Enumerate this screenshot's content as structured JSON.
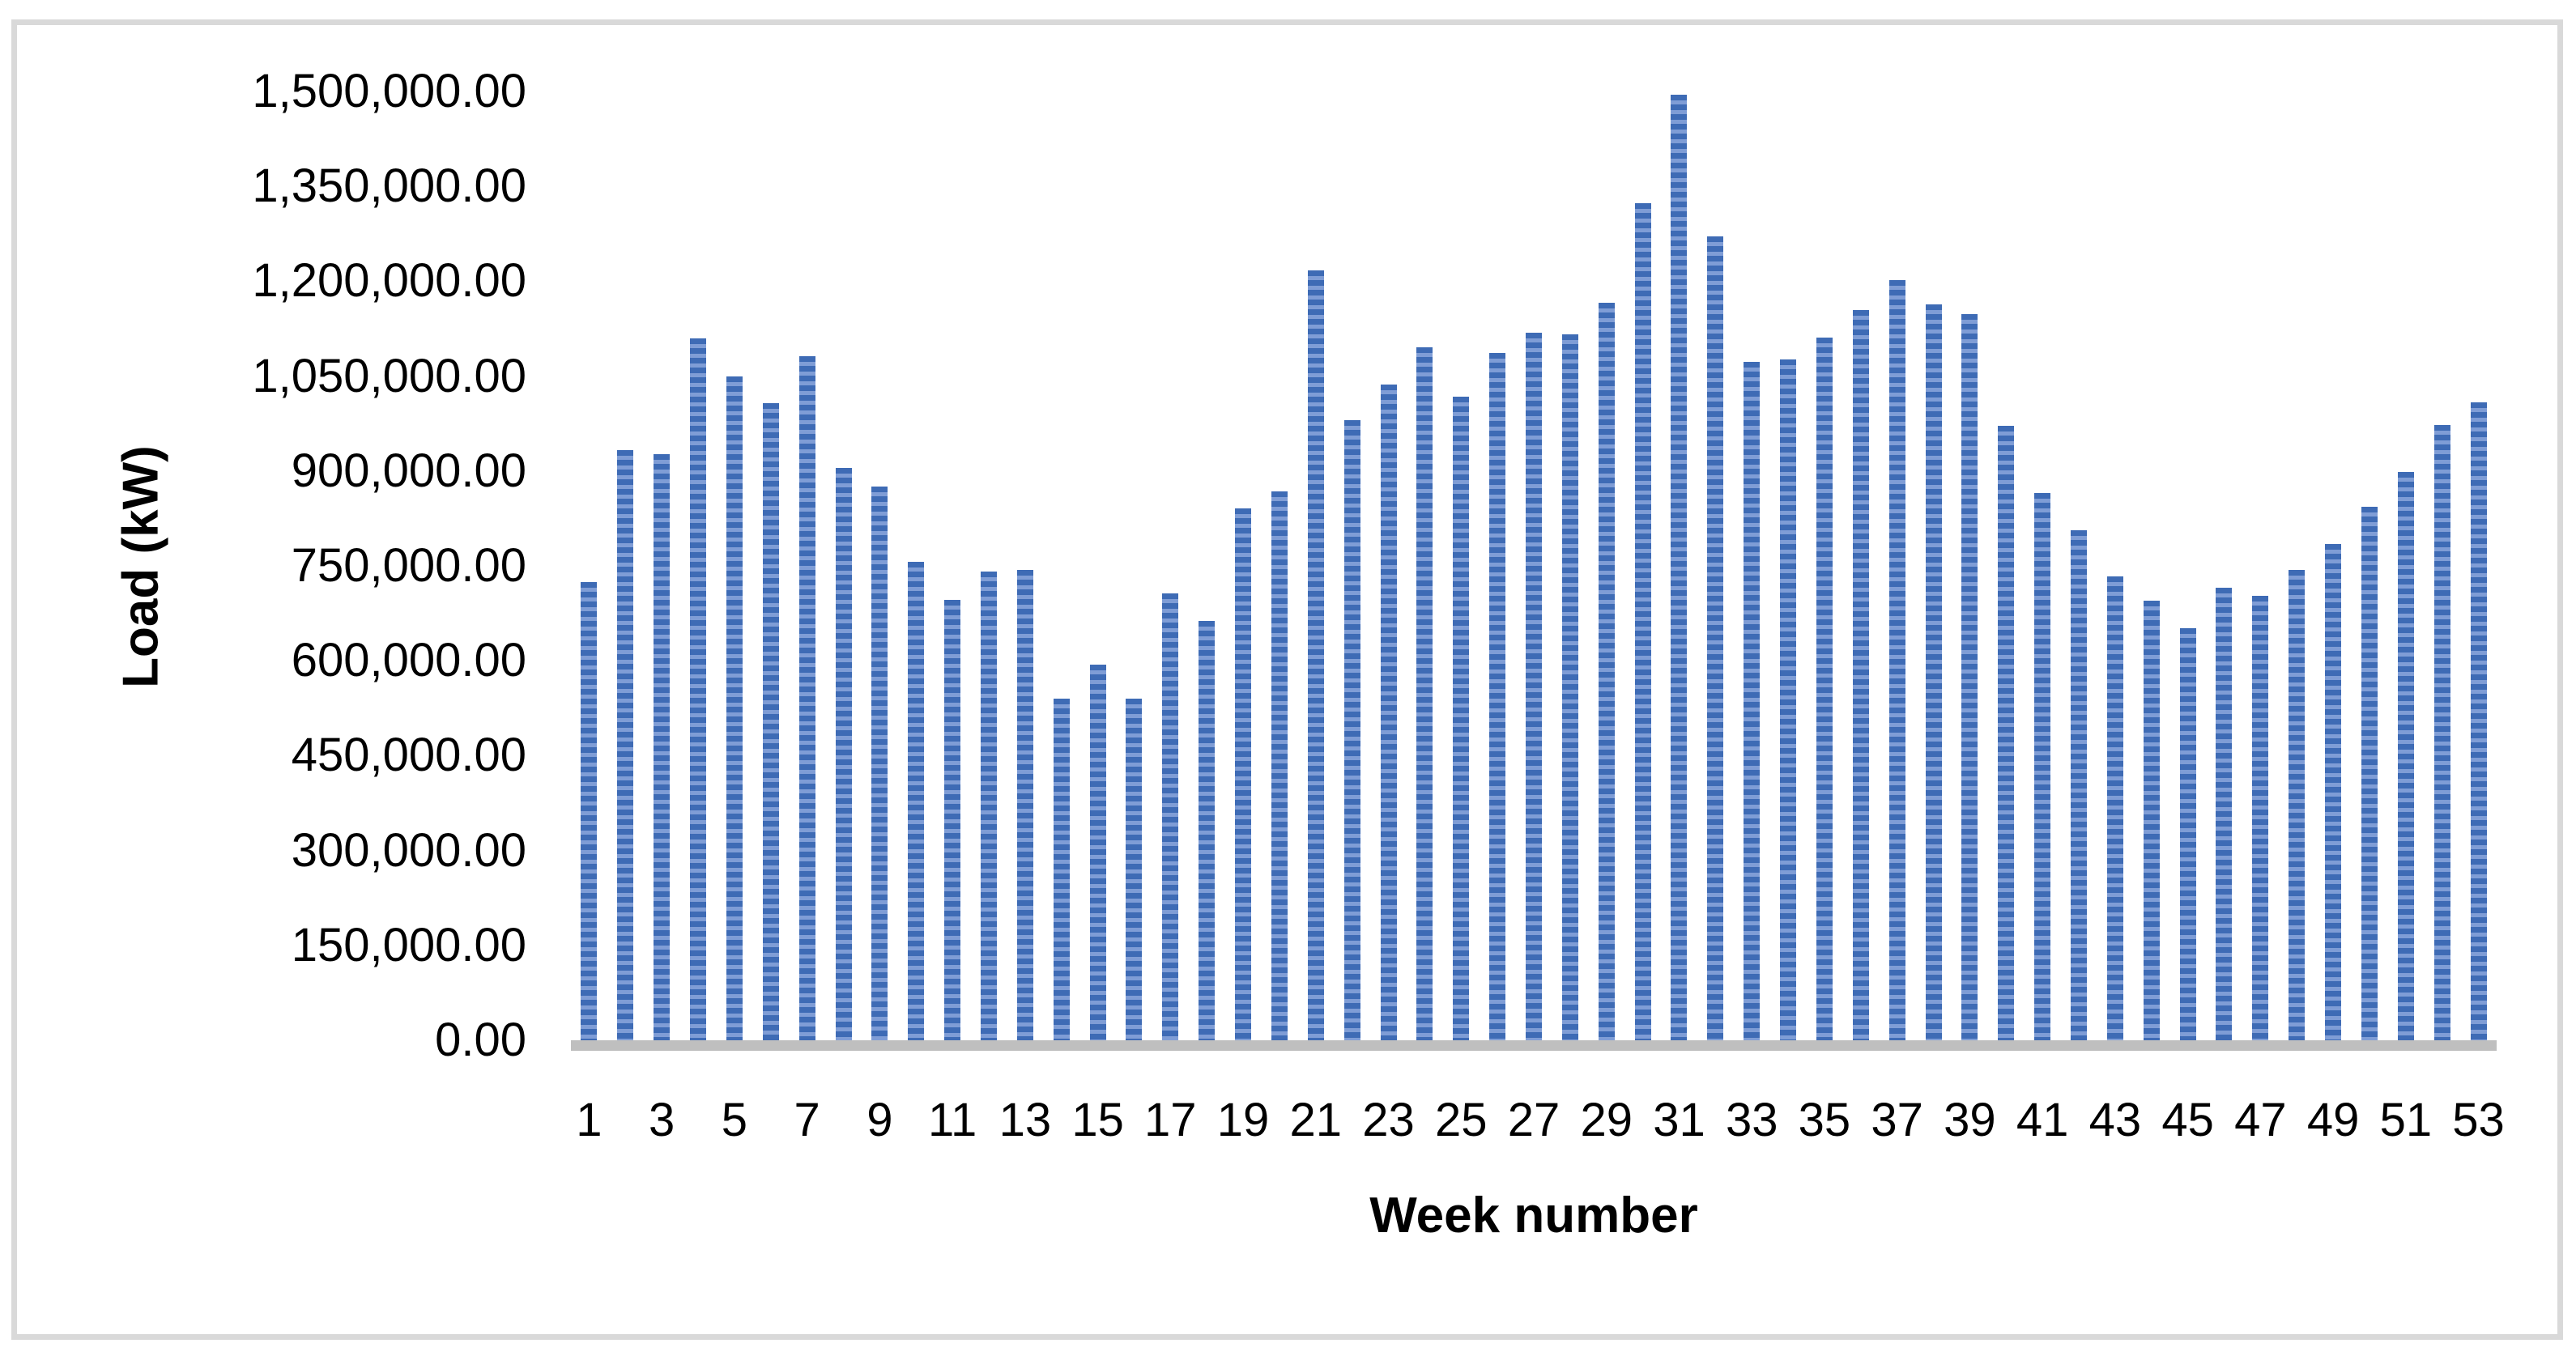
{
  "figure": {
    "background": "#FFFFFF",
    "frame_border_color": "#D9D9D9",
    "axis_line_color": "#BFBFBF",
    "text_color": "#000000",
    "bar_stripe_dark": "#3E6BB5",
    "bar_stripe_light": "#7F9DD6"
  },
  "chart_data": {
    "type": "bar",
    "title": "",
    "xlabel": "Week number",
    "ylabel": "Load (kW)",
    "x": [
      1,
      2,
      3,
      4,
      5,
      6,
      7,
      8,
      9,
      10,
      11,
      12,
      13,
      14,
      15,
      16,
      17,
      18,
      19,
      20,
      21,
      22,
      23,
      24,
      25,
      26,
      27,
      28,
      29,
      30,
      31,
      32,
      33,
      34,
      35,
      36,
      37,
      38,
      39,
      40,
      41,
      42,
      43,
      44,
      45,
      46,
      47,
      48,
      49,
      50,
      51,
      52,
      53
    ],
    "values": [
      725000,
      933000,
      926000,
      1110000,
      1049000,
      1007000,
      1081000,
      905000,
      876000,
      757000,
      696000,
      741000,
      744000,
      540000,
      594000,
      540000,
      706000,
      663000,
      841000,
      868000,
      1217000,
      980000,
      1037000,
      1095000,
      1018000,
      1086000,
      1118000,
      1116000,
      1166000,
      1324000,
      1495000,
      1271000,
      1072000,
      1077000,
      1111000,
      1155000,
      1202000,
      1163000,
      1148000,
      971000,
      865000,
      806000,
      733000,
      695000,
      652000,
      715000,
      703000,
      744000,
      784000,
      844000,
      899000,
      973000,
      1008000
    ],
    "x_tick_labels": [
      "1",
      "3",
      "5",
      "7",
      "9",
      "11",
      "13",
      "15",
      "17",
      "19",
      "21",
      "23",
      "25",
      "27",
      "29",
      "31",
      "33",
      "35",
      "37",
      "39",
      "41",
      "43",
      "45",
      "47",
      "49",
      "51",
      "53"
    ],
    "y_tick_labels": [
      "0.00",
      "150,000.00",
      "300,000.00",
      "450,000.00",
      "600,000.00",
      "750,000.00",
      "900,000.00",
      "1,050,000.00",
      "1,200,000.00",
      "1,350,000.00",
      "1,500,000.00"
    ],
    "ylim": [
      0,
      1500000
    ],
    "y_tick_step": 150000,
    "grid": false,
    "legend": false,
    "bar_pattern": "horizontal-stripes"
  }
}
